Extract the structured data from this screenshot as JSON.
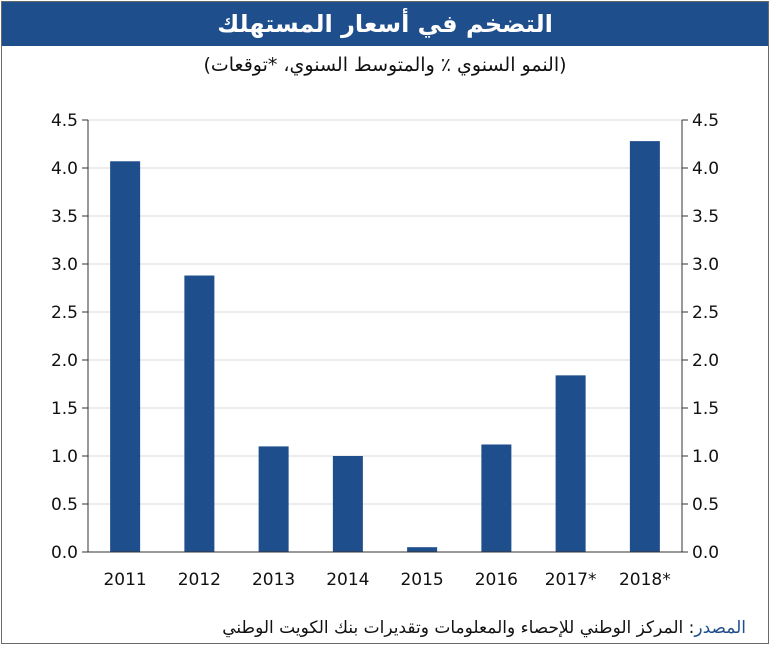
{
  "chart_data": {
    "type": "bar",
    "title": "التضخم في أسعار المستهلك",
    "subtitle": "(النمو السنوي ٪ والمتوسط السنوي، *توقعات)",
    "categories": [
      "2011",
      "2012",
      "2013",
      "2014",
      "2015",
      "2016",
      "2017*",
      "2018*"
    ],
    "values": [
      4.07,
      2.88,
      1.1,
      1.0,
      0.05,
      1.12,
      1.84,
      4.28
    ],
    "ylim": [
      0,
      4.5
    ],
    "yticks": [
      "0.0",
      "0.5",
      "1.0",
      "1.5",
      "2.0",
      "2.5",
      "3.0",
      "3.5",
      "4.0",
      "4.5"
    ],
    "grid": true,
    "legend": "none",
    "bar_color": "#1f4e8c"
  },
  "source": {
    "label": "المصدر",
    "text": ": المركز الوطني للإحصاء والمعلومات وتقديرات بنك الكويت الوطني"
  },
  "colors": {
    "header": "#1f4e8c",
    "gridline": "#d9d9d9"
  }
}
